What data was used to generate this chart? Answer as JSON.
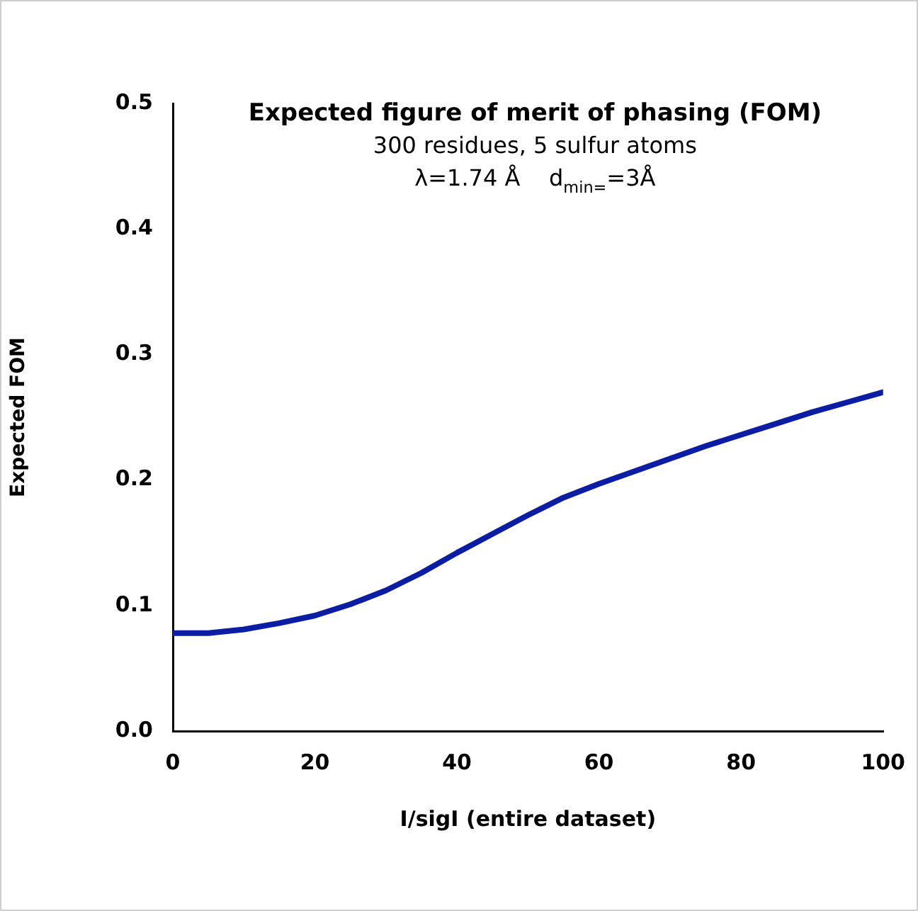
{
  "chart_data": {
    "type": "line",
    "title": "Expected figure of merit of phasing (FOM)",
    "subtitle": "300 residues, 5 sulfur atoms",
    "annotations": [
      "λ=1.74 Å    d$_{min=}$=3Å"
    ],
    "xlabel": "I/sigI (entire dataset)",
    "ylabel": "Expected FOM",
    "x": [
      0,
      5,
      10,
      15,
      20,
      25,
      30,
      35,
      40,
      45,
      50,
      55,
      60,
      65,
      70,
      75,
      80,
      85,
      90,
      95,
      100
    ],
    "series": [
      {
        "color": "#0b1ea3",
        "values": [
          0.078,
          0.078,
          0.081,
          0.086,
          0.092,
          0.101,
          0.112,
          0.126,
          0.142,
          0.157,
          0.172,
          0.186,
          0.197,
          0.207,
          0.217,
          0.227,
          0.236,
          0.245,
          0.254,
          0.262,
          0.27
        ]
      }
    ],
    "xlim": [
      0,
      100
    ],
    "xticks": [
      0,
      20,
      40,
      60,
      80,
      100
    ],
    "ylim": [
      0,
      0.5
    ],
    "yticks": [
      {
        "value": 0,
        "label": "0.0"
      },
      {
        "value": 0.1,
        "label": "0.1"
      },
      {
        "value": 0.2,
        "label": "0.2"
      },
      {
        "value": 0.3,
        "label": "0.3"
      },
      {
        "value": 0.4,
        "label": "0.4"
      },
      {
        "value": 0.5,
        "label": "0.5"
      }
    ],
    "grid": false,
    "legend": false,
    "marker": "none",
    "line_style": "solid"
  }
}
